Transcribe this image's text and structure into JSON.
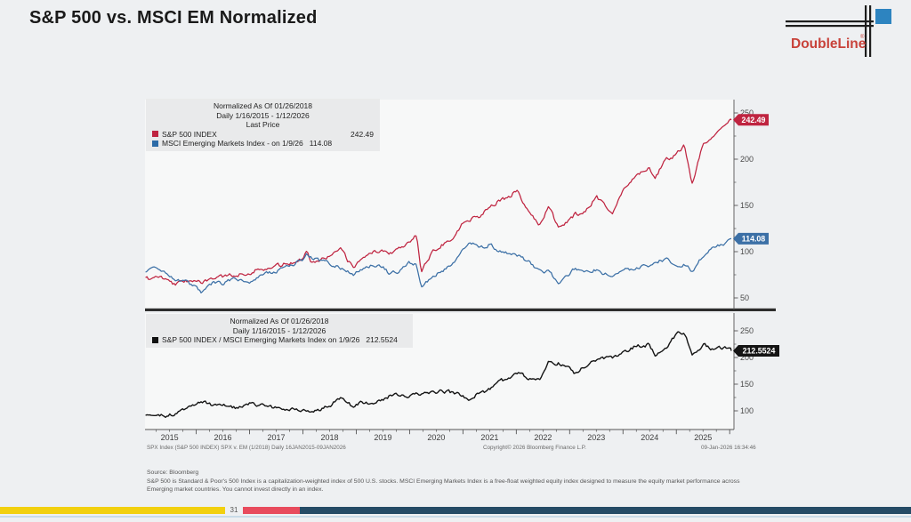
{
  "slide": {
    "title": "S&P 500 vs. MSCI EM Normalized",
    "page_number": "31",
    "logo": {
      "brand": "DoubleLine",
      "registered": "®"
    },
    "footer": {
      "source": "Source: Bloomberg",
      "disclaimer_line1": "S&P 500 is Standard & Poor's 500 Index is a capitalization-weighted index of 500 U.S. stocks. MSCI Emerging Markets Index is a free-float weighted equity index designed to measure the equity market performance  across",
      "disclaimer_line2": "Emerging market countries. You cannot invest directly in an index."
    },
    "colors": {
      "accent_yellow": "#f2d00f",
      "accent_red": "#e84b5d",
      "accent_navy": "#254b66",
      "brand_red": "#c8423a",
      "brand_blue": "#2d84c0"
    }
  },
  "bloomberg_footer": {
    "left": "SPX Index (S&P 500 INDEX) SPX v. EM (1/2018) Daily 16JAN2015-09JAN2026",
    "center": "Copyright© 2026 Bloomberg Finance L.P.",
    "right": "09-Jan-2026 16:34:46"
  },
  "chart_data": [
    {
      "type": "line",
      "title": "Normalized As Of 01/26/2018",
      "subtitle": "Daily 1/16/2015 - 1/12/2026",
      "legend_header": "Last Price",
      "x_unit": "decimal_year",
      "xlim": [
        2015.04,
        2026.03
      ],
      "ylim": [
        35,
        262
      ],
      "yticks": [
        250,
        200,
        150,
        100,
        50
      ],
      "grid": false,
      "legend_position": "top-left",
      "x": [
        2015.05,
        2015.3,
        2015.6,
        2015.8,
        2016.0,
        2016.1,
        2016.3,
        2016.5,
        2016.75,
        2017.0,
        2017.25,
        2017.5,
        2017.75,
        2018.0,
        2018.07,
        2018.15,
        2018.3,
        2018.5,
        2018.7,
        2018.95,
        2019.1,
        2019.3,
        2019.5,
        2019.6,
        2019.8,
        2020.0,
        2020.13,
        2020.22,
        2020.4,
        2020.6,
        2020.8,
        2021.0,
        2021.12,
        2021.3,
        2021.5,
        2021.7,
        2021.9,
        2022.0,
        2022.2,
        2022.45,
        2022.6,
        2022.8,
        2023.0,
        2023.1,
        2023.3,
        2023.5,
        2023.8,
        2024.0,
        2024.25,
        2024.5,
        2024.6,
        2024.8,
        2025.0,
        2025.15,
        2025.3,
        2025.5,
        2025.7,
        2025.9,
        2026.03
      ],
      "series": [
        {
          "name": "S&P 500 INDEX",
          "last_price": "242.49",
          "color": "#bf2440",
          "values": [
            70,
            73,
            65,
            68,
            71,
            64,
            72,
            73,
            75,
            78,
            82,
            84,
            88,
            93,
            100,
            90,
            92,
            95,
            102,
            82,
            94,
            99,
            102,
            98,
            104,
            112,
            118,
            78,
            98,
            108,
            114,
            131,
            135,
            138,
            150,
            155,
            160,
            167,
            145,
            128,
            150,
            125,
            134,
            140,
            143,
            159,
            143,
            166,
            183,
            190,
            180,
            200,
            205,
            214,
            173,
            216,
            226,
            239,
            242.49
          ]
        },
        {
          "name": "MSCI Emerging Markets Index -  on 1/9/26",
          "last_price": "114.08",
          "color": "#3c70a6",
          "values": [
            78,
            82,
            69,
            67,
            62,
            54,
            66,
            66,
            71,
            68,
            75,
            79,
            85,
            91,
            100,
            94,
            90,
            88,
            82,
            76,
            81,
            86,
            83,
            77,
            79,
            88,
            86,
            60,
            73,
            78,
            85,
            101,
            113,
            103,
            108,
            100,
            98,
            97,
            90,
            79,
            79,
            66,
            75,
            82,
            78,
            81,
            72,
            80,
            82,
            85,
            88,
            92,
            84,
            86,
            79,
            96,
            105,
            109,
            114.08
          ]
        }
      ]
    },
    {
      "type": "line",
      "title": "Normalized As Of 01/26/2018",
      "subtitle": "Daily 1/16/2015 - 1/12/2026",
      "x_unit": "decimal_year",
      "xlim": [
        2015.04,
        2026.03
      ],
      "ylim": [
        65,
        283
      ],
      "yticks": [
        250,
        200,
        150,
        100
      ],
      "grid": false,
      "legend_position": "top-left",
      "x_tick_years": [
        2015,
        2016,
        2017,
        2018,
        2019,
        2020,
        2021,
        2022,
        2023,
        2024,
        2025
      ],
      "x": [
        2015.05,
        2015.3,
        2015.6,
        2015.8,
        2016.0,
        2016.1,
        2016.3,
        2016.5,
        2016.75,
        2017.0,
        2017.25,
        2017.5,
        2017.75,
        2018.0,
        2018.07,
        2018.15,
        2018.3,
        2018.5,
        2018.7,
        2018.95,
        2019.1,
        2019.3,
        2019.5,
        2019.6,
        2019.8,
        2020.0,
        2020.13,
        2020.22,
        2020.4,
        2020.6,
        2020.8,
        2021.0,
        2021.12,
        2021.3,
        2021.5,
        2021.7,
        2021.9,
        2022.0,
        2022.2,
        2022.45,
        2022.6,
        2022.8,
        2023.0,
        2023.1,
        2023.3,
        2023.5,
        2023.8,
        2024.0,
        2024.25,
        2024.5,
        2024.6,
        2024.8,
        2025.0,
        2025.15,
        2025.3,
        2025.5,
        2025.7,
        2025.9,
        2026.03
      ],
      "series": [
        {
          "name": "S&P 500 INDEX / MSCI Emerging Markets Index on 1/9/26",
          "last_price": "212.5524",
          "color": "#141414",
          "values": [
            89.7,
            89.0,
            94.2,
            101.5,
            114.5,
            118.5,
            109.1,
            110.6,
            105.6,
            114.7,
            109.3,
            106.3,
            103.5,
            102.2,
            100.0,
            95.7,
            102.2,
            108.0,
            124.4,
            107.9,
            116.0,
            115.1,
            122.9,
            127.3,
            131.6,
            127.3,
            137.2,
            130.0,
            134.2,
            138.5,
            134.1,
            129.7,
            119.5,
            134.0,
            138.9,
            155.0,
            163.3,
            172.2,
            161.1,
            162.0,
            189.9,
            189.4,
            178.7,
            170.7,
            183.3,
            196.3,
            198.6,
            207.5,
            223.2,
            223.5,
            204.5,
            217.4,
            244.0,
            248.8,
            205.0,
            225.0,
            215.2,
            219.3,
            212.5524
          ]
        }
      ]
    }
  ]
}
